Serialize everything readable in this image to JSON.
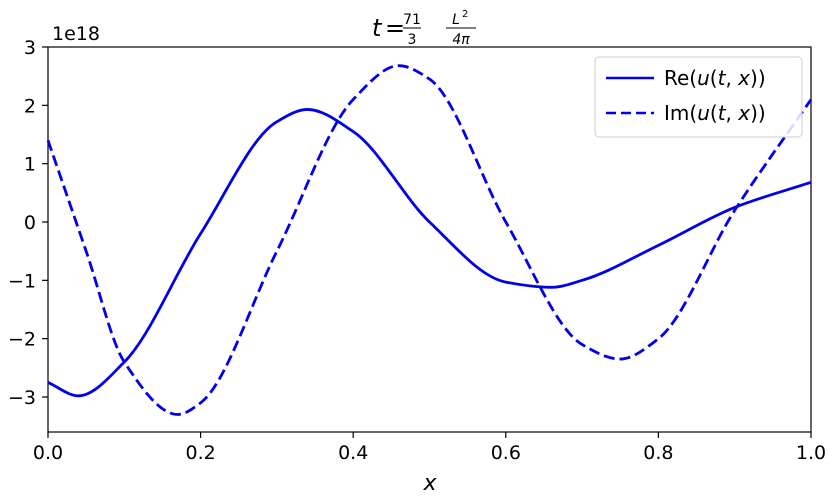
{
  "chart_data": {
    "type": "line",
    "title": {
      "prefix": "t",
      "frac1_num": "71",
      "frac1_den": "3",
      "frac2_num": "L",
      "frac2_num_sup": "2",
      "frac2_den": "4π"
    },
    "xlabel": "x",
    "ylabel": "",
    "offset_text": "1e18",
    "xlim": [
      0.0,
      1.0
    ],
    "ylim": [
      -3.6,
      3.0
    ],
    "xticks": [
      0.0,
      0.2,
      0.4,
      0.6,
      0.8,
      1.0
    ],
    "xtick_labels": [
      "0.0",
      "0.2",
      "0.4",
      "0.6",
      "0.8",
      "1.0"
    ],
    "yticks": [
      3,
      2,
      1,
      0,
      -1,
      -2,
      -3
    ],
    "ytick_labels": [
      "3",
      "2",
      "1",
      "0",
      "−1",
      "−2",
      "−3"
    ],
    "grid": false,
    "legend_position": "top-right",
    "series": [
      {
        "name": "Re(u(t,x))",
        "legend_parts": [
          "Re(",
          "u",
          "(",
          "t",
          ", ",
          "x",
          "))"
        ],
        "color": "#0000ee",
        "style": "solid",
        "x": [
          0.0,
          0.04,
          0.1,
          0.2,
          0.3,
          0.34,
          0.4,
          0.5,
          0.6,
          0.66,
          0.7,
          0.8,
          0.9,
          1.0
        ],
        "y": [
          -2.75,
          -2.98,
          -2.4,
          -0.2,
          1.72,
          1.93,
          1.55,
          0.0,
          -1.03,
          -1.12,
          -1.0,
          -0.4,
          0.25,
          0.68
        ]
      },
      {
        "name": "Im(u(t,x))",
        "legend_parts": [
          "Im(",
          "u",
          "(",
          "t",
          ", ",
          "x",
          "))"
        ],
        "color": "#0000ee",
        "style": "dashed",
        "x": [
          0.0,
          0.05,
          0.1,
          0.17,
          0.2,
          0.3,
          0.4,
          0.46,
          0.5,
          0.6,
          0.7,
          0.75,
          0.8,
          0.9,
          1.0
        ],
        "y": [
          1.4,
          -0.5,
          -2.4,
          -3.3,
          -3.1,
          -0.5,
          2.1,
          2.68,
          2.45,
          0.0,
          -2.1,
          -2.35,
          -2.0,
          0.2,
          2.1
        ]
      }
    ]
  }
}
